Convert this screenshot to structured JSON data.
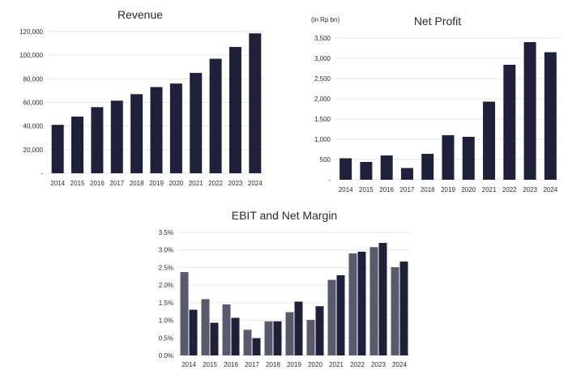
{
  "chart_data": [
    {
      "type": "bar",
      "title": "Revenue",
      "unit_note": "",
      "categories": [
        "2014",
        "2015",
        "2016",
        "2017",
        "2018",
        "2019",
        "2020",
        "2021",
        "2022",
        "2023",
        "2024"
      ],
      "values": [
        41000,
        48000,
        56000,
        61500,
        67000,
        73000,
        76000,
        85000,
        97000,
        107000,
        118500
      ],
      "yticks": [
        "-",
        "20,000",
        "40,000",
        "60,000",
        "80,000",
        "100,000",
        "120,000"
      ],
      "ylim": [
        0,
        120000
      ],
      "grid": true,
      "colors": {
        "bar": "#1e2139"
      }
    },
    {
      "type": "bar",
      "title": "Net Profit",
      "unit_note": "(in Rp bn)",
      "categories": [
        "2014",
        "2015",
        "2016",
        "2017",
        "2018",
        "2019",
        "2020",
        "2021",
        "2022",
        "2023",
        "2024"
      ],
      "values": [
        530,
        440,
        600,
        290,
        640,
        1100,
        1060,
        1930,
        2840,
        3400,
        3150
      ],
      "yticks": [
        "-",
        "500",
        "1,000",
        "1,500",
        "2,000",
        "2,500",
        "3,000",
        "3,500"
      ],
      "ylim": [
        0,
        3500
      ],
      "grid": true,
      "colors": {
        "bar": "#1e2139"
      }
    },
    {
      "type": "bar",
      "title": "EBIT and Net Margin",
      "unit_note": "",
      "categories": [
        "2014",
        "2015",
        "2016",
        "2017",
        "2018",
        "2019",
        "2020",
        "2021",
        "2022",
        "2023",
        "2024"
      ],
      "series": [
        {
          "values": [
            2.37,
            1.6,
            1.45,
            0.73,
            0.97,
            1.23,
            1.01,
            2.15,
            2.9,
            3.08,
            2.51
          ],
          "color": "#5a5a6e"
        },
        {
          "values": [
            1.3,
            0.93,
            1.07,
            0.49,
            0.97,
            1.53,
            1.4,
            2.28,
            2.95,
            3.2,
            2.67
          ],
          "color": "#1e2139"
        }
      ],
      "yticks": [
        "0.0%",
        "0.5%",
        "1.0%",
        "1.5%",
        "2.0%",
        "2.5%",
        "3.0%",
        "3.5%"
      ],
      "ylim": [
        0,
        3.5
      ],
      "grid": true
    }
  ]
}
